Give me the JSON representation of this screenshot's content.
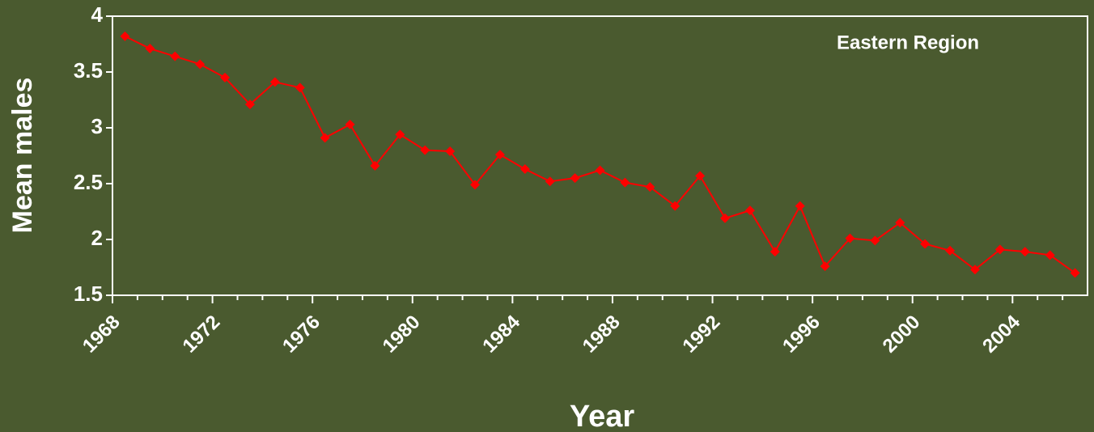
{
  "chart_data": {
    "type": "line",
    "annotation": "Eastern Region",
    "x_label": "Year",
    "y_label": "Mean males",
    "categories": [
      "1968",
      null,
      null,
      null,
      "1972",
      null,
      null,
      null,
      "1976",
      null,
      null,
      null,
      "1980",
      null,
      null,
      null,
      "1984",
      null,
      null,
      null,
      "1988",
      null,
      null,
      null,
      "1992",
      null,
      null,
      null,
      "1996",
      null,
      null,
      null,
      "2000",
      null,
      null,
      null,
      "2004",
      null,
      null
    ],
    "series": [
      {
        "name": "Mean males",
        "color": "#ff0000",
        "values": [
          3.82,
          3.71,
          3.64,
          3.57,
          3.45,
          3.21,
          3.41,
          3.36,
          2.91,
          3.03,
          2.66,
          2.94,
          2.8,
          2.79,
          2.49,
          2.76,
          2.63,
          2.52,
          2.55,
          2.62,
          2.51,
          2.47,
          2.3,
          2.57,
          2.19,
          2.26,
          1.89,
          2.3,
          1.76,
          2.01,
          1.99,
          2.15,
          1.96,
          1.9,
          1.73,
          1.91,
          1.89,
          1.86,
          1.7
        ]
      }
    ],
    "ylim": [
      1.5,
      4
    ],
    "yticks": [
      1.5,
      2,
      2.5,
      3,
      3.5,
      4
    ]
  }
}
